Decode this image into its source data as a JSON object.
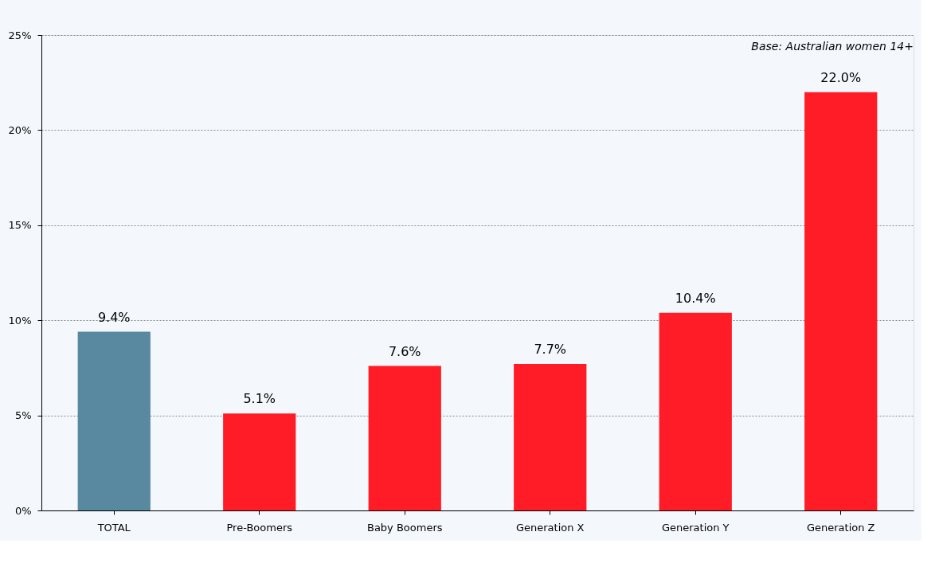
{
  "chart_data": {
    "type": "bar",
    "categories": [
      "TOTAL",
      "Pre-Boomers",
      "Baby Boomers",
      "Generation X",
      "Generation Y",
      "Generation Z"
    ],
    "values": [
      9.4,
      5.1,
      7.6,
      7.7,
      10.4,
      22.0
    ],
    "colors": [
      "#5889a0",
      "#ff1c27",
      "#ff1c27",
      "#ff1c27",
      "#ff1c27",
      "#ff1c27"
    ],
    "value_labels": [
      "9.4%",
      "5.1%",
      "7.6%",
      "7.7%",
      "10.4%",
      "22.0%"
    ],
    "ylim": [
      0,
      25
    ],
    "yticks": [
      {
        "value": 0,
        "label": "0%"
      },
      {
        "value": 5,
        "label": "5%"
      },
      {
        "value": 10,
        "label": "10%"
      },
      {
        "value": 15,
        "label": "15%"
      },
      {
        "value": 20,
        "label": "20%"
      },
      {
        "value": 25,
        "label": "25%"
      }
    ],
    "grid": "y",
    "annotations": [
      "Base: Australian women 14+"
    ]
  }
}
